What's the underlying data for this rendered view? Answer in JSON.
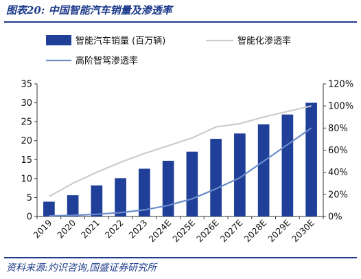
{
  "header": {
    "figure_label": "图表20:",
    "title": "中国智能汽车销量及渗透率"
  },
  "footer": {
    "source": "资料来源:灼识咨询,国盛证券研究所"
  },
  "colors": {
    "bar": "#1f3f99",
    "smart_line": "#cccccc",
    "adas_line": "#6a8cc9",
    "brand": "#1c3a8a"
  },
  "chart_data": {
    "type": "bar",
    "categories": [
      "2019",
      "2020",
      "2021",
      "2022",
      "2023",
      "2024E",
      "2025E",
      "2026E",
      "2027E",
      "2028E",
      "2029E",
      "2030E"
    ],
    "series": [
      {
        "name": "智能汽车销量 (百万辆)",
        "type": "bar",
        "axis": "left",
        "values": [
          3.9,
          5.6,
          8.2,
          10.1,
          12.6,
          14.7,
          17.1,
          20.5,
          21.9,
          24.3,
          26.9,
          30.0
        ]
      },
      {
        "name": "智能化渗透率",
        "type": "line",
        "axis": "right",
        "values": [
          18,
          30,
          40,
          49,
          57,
          64,
          71,
          81,
          84,
          90,
          95,
          100
        ]
      },
      {
        "name": "高阶智驾渗透率",
        "type": "line",
        "axis": "right",
        "values": [
          0.5,
          1,
          2,
          3.5,
          6,
          10,
          16,
          25,
          35,
          50,
          65,
          80
        ]
      }
    ],
    "y_left": {
      "min": 0,
      "max": 35,
      "ticks": [
        0,
        5,
        10,
        15,
        20,
        25,
        30,
        35
      ]
    },
    "y_right": {
      "min": 0,
      "max": 120,
      "ticks": [
        "0%",
        "20%",
        "40%",
        "60%",
        "80%",
        "100%",
        "120%"
      ]
    },
    "grid": false,
    "legend": "top-left"
  }
}
